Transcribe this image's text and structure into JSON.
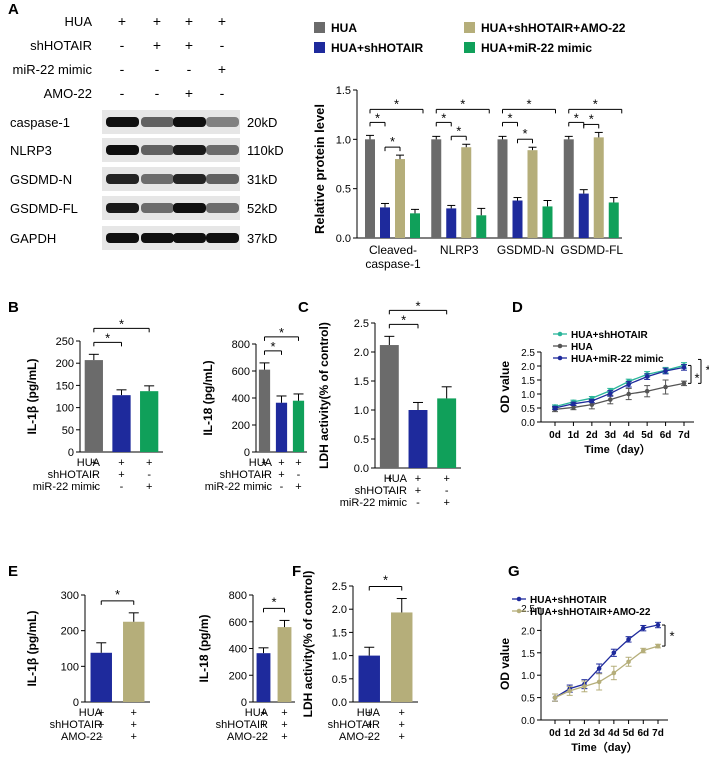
{
  "panel_letters": [
    "A",
    "B",
    "C",
    "D",
    "E",
    "F",
    "G"
  ],
  "colors": {
    "gray": "#6b6b6b",
    "blue": "#1e2a9c",
    "khaki": "#b5ae7a",
    "green": "#10a05a",
    "teal": "#2ab59a",
    "dark": "#555555"
  },
  "blot": {
    "row_labels": [
      "HUA",
      "shHOTAIR",
      "miR-22 mimic",
      "AMO-22"
    ],
    "signs": [
      [
        "+",
        "+",
        "+",
        "+"
      ],
      [
        "-",
        "+",
        "+",
        "-"
      ],
      [
        "-",
        "-",
        "-",
        "+"
      ],
      [
        "-",
        "-",
        "+",
        "-"
      ]
    ],
    "bands": [
      {
        "name": "caspase-1",
        "kd": "20kD",
        "intensity": [
          0.95,
          0.55,
          0.95,
          0.4
        ]
      },
      {
        "name": "NLRP3",
        "kd": "110kD",
        "intensity": [
          0.95,
          0.55,
          0.9,
          0.5
        ]
      },
      {
        "name": "GSDMD-N",
        "kd": "31kD",
        "intensity": [
          0.85,
          0.5,
          0.85,
          0.55
        ]
      },
      {
        "name": "GSDMD-FL",
        "kd": "52kD",
        "intensity": [
          0.9,
          0.5,
          0.95,
          0.5
        ]
      },
      {
        "name": "GAPDH",
        "kd": "37kD",
        "intensity": [
          0.95,
          0.95,
          0.95,
          0.95
        ]
      }
    ]
  },
  "chart_data": [
    {
      "panel": "A",
      "type": "bar",
      "ylabel": "Relative protein level",
      "ylim": [
        0,
        1.5
      ],
      "yticks": [
        "0.0",
        "0.5",
        "1.0",
        "1.5"
      ],
      "categories": [
        "Cleaved-caspase-1",
        "NLRP3",
        "GSDMD-N",
        "GSDMD-FL"
      ],
      "category_lines": [
        [
          "Cleaved-",
          "caspase-1"
        ],
        [
          "NLRP3"
        ],
        [
          "GSDMD-N"
        ],
        [
          "GSDMD-FL"
        ]
      ],
      "legend": [
        "HUA",
        "HUA+shHOTAIR",
        "HUA+shHOTAIR+AMO-22",
        "HUA+miR-22 mimic"
      ],
      "series": [
        {
          "name": "HUA",
          "color": "gray",
          "values": [
            1.0,
            1.0,
            1.0,
            1.0
          ],
          "err": [
            0.04,
            0.03,
            0.03,
            0.03
          ]
        },
        {
          "name": "HUA+shHOTAIR",
          "color": "blue",
          "values": [
            0.31,
            0.3,
            0.38,
            0.45
          ],
          "err": [
            0.04,
            0.03,
            0.03,
            0.04
          ]
        },
        {
          "name": "HUA+shHOTAIR+AMO-22",
          "color": "khaki",
          "values": [
            0.8,
            0.92,
            0.89,
            1.02
          ],
          "err": [
            0.04,
            0.03,
            0.03,
            0.05
          ]
        },
        {
          "name": "HUA+miR-22 mimic",
          "color": "green",
          "values": [
            0.25,
            0.23,
            0.32,
            0.36
          ],
          "err": [
            0.04,
            0.07,
            0.06,
            0.05
          ]
        }
      ],
      "significance": "*"
    },
    {
      "panel": "B1",
      "type": "bar",
      "ylabel": "IL-1β (pg/mL)",
      "ylim": [
        0,
        250
      ],
      "yticks": [
        "0",
        "50",
        "100",
        "150",
        "200",
        "250"
      ],
      "values": [
        207,
        128,
        137
      ],
      "err": [
        13,
        12,
        12
      ],
      "colors": [
        "gray",
        "blue",
        "green"
      ],
      "conditions": [
        "HUA",
        "shHOTAIR",
        "miR-22 mimic"
      ],
      "signs": [
        [
          "+",
          "+",
          "+"
        ],
        [
          "-",
          "+",
          "-"
        ],
        [
          "-",
          "-",
          "+"
        ]
      ],
      "significance": "*"
    },
    {
      "panel": "B2",
      "type": "bar",
      "ylabel": "IL-18 (pg/mL)",
      "ylim": [
        0,
        800
      ],
      "yticks": [
        "0",
        "200",
        "400",
        "600",
        "800"
      ],
      "values": [
        610,
        365,
        380
      ],
      "err": [
        50,
        50,
        50
      ],
      "colors": [
        "gray",
        "blue",
        "green"
      ],
      "conditions": [
        "HUA",
        "shHOTAIR",
        "miR-22 mimic"
      ],
      "signs": [
        [
          "+",
          "+",
          "+"
        ],
        [
          "-",
          "+",
          "-"
        ],
        [
          "-",
          "-",
          "+"
        ]
      ],
      "significance": "*"
    },
    {
      "panel": "C",
      "type": "bar",
      "ylabel": "LDH activity(% of control)",
      "ylim": [
        0,
        2.5
      ],
      "yticks": [
        "0.0",
        "0.5",
        "1.0",
        "1.5",
        "2.0",
        "2.5"
      ],
      "values": [
        2.12,
        1.0,
        1.2
      ],
      "err": [
        0.15,
        0.13,
        0.2
      ],
      "colors": [
        "gray",
        "blue",
        "green"
      ],
      "conditions": [
        "HUA",
        "shHOTAIR",
        "miR-22 mimic"
      ],
      "signs": [
        [
          "+",
          "+",
          "+"
        ],
        [
          "-",
          "+",
          "-"
        ],
        [
          "-",
          "-",
          "+"
        ]
      ],
      "significance": "*"
    },
    {
      "panel": "D",
      "type": "line",
      "ylabel": "OD value",
      "xlabel": "Time（day）",
      "ylim": [
        0,
        2.5
      ],
      "yticks": [
        "0.0",
        "0.5",
        "1.0",
        "1.5",
        "2.0",
        "2.5"
      ],
      "x": [
        "0d",
        "1d",
        "2d",
        "3d",
        "4d",
        "5d",
        "6d",
        "7d"
      ],
      "series": [
        {
          "name": "HUA+shHOTAIR",
          "color": "teal",
          "values": [
            0.55,
            0.72,
            0.85,
            1.12,
            1.45,
            1.7,
            1.85,
            2.02
          ],
          "err": [
            0.06,
            0.06,
            0.06,
            0.08,
            0.08,
            0.1,
            0.1,
            0.1
          ]
        },
        {
          "name": "HUA",
          "color": "dark",
          "values": [
            0.45,
            0.52,
            0.62,
            0.8,
            1.0,
            1.1,
            1.25,
            1.38
          ],
          "err": [
            0.08,
            0.08,
            0.15,
            0.15,
            0.2,
            0.2,
            0.25,
            0.08
          ]
        },
        {
          "name": "HUA+miR-22 mimic",
          "color": "blue",
          "values": [
            0.5,
            0.65,
            0.75,
            1.02,
            1.35,
            1.62,
            1.82,
            1.95
          ],
          "err": [
            0.06,
            0.06,
            0.06,
            0.1,
            0.1,
            0.1,
            0.1,
            0.1
          ]
        }
      ],
      "significance": "*"
    },
    {
      "panel": "E1",
      "type": "bar",
      "ylabel": "IL-1β (pg/mL)",
      "ylim": [
        0,
        300
      ],
      "yticks": [
        "0",
        "100",
        "200",
        "300"
      ],
      "values": [
        138,
        225
      ],
      "err": [
        28,
        25
      ],
      "colors": [
        "blue",
        "khaki"
      ],
      "conditions": [
        "HUA",
        "shHOTAIR",
        "AMO-22"
      ],
      "signs": [
        [
          "+",
          "+"
        ],
        [
          "+",
          "+"
        ],
        [
          "-",
          "+"
        ]
      ],
      "significance": "*"
    },
    {
      "panel": "E2",
      "type": "bar",
      "ylabel": "IL-18 (pg/m)",
      "ylim": [
        0,
        800
      ],
      "yticks": [
        "0",
        "200",
        "400",
        "600",
        "800"
      ],
      "values": [
        365,
        560
      ],
      "err": [
        40,
        50
      ],
      "colors": [
        "blue",
        "khaki"
      ],
      "conditions": [
        "HUA",
        "shHOTAIR",
        "AMO-22"
      ],
      "signs": [
        [
          "+",
          "+"
        ],
        [
          "+",
          "+"
        ],
        [
          "-",
          "+"
        ]
      ],
      "significance": "*"
    },
    {
      "panel": "F",
      "type": "bar",
      "ylabel": "LDH activity(% of control)",
      "ylim": [
        0,
        2.5
      ],
      "yticks": [
        "0.0",
        "0.5",
        "1.0",
        "1.5",
        "2.0",
        "2.5"
      ],
      "values": [
        1.0,
        1.93
      ],
      "err": [
        0.18,
        0.3
      ],
      "colors": [
        "blue",
        "khaki"
      ],
      "conditions": [
        "HUA",
        "shHOTAIR",
        "AMO-22"
      ],
      "signs": [
        [
          "+",
          "+"
        ],
        [
          "+",
          "+"
        ],
        [
          "-",
          "+"
        ]
      ],
      "significance": "*"
    },
    {
      "panel": "G",
      "type": "line",
      "ylabel": "OD value",
      "xlabel": "Time（day）",
      "ylim": [
        0,
        2.5
      ],
      "yticks": [
        "0.0",
        "0.5",
        "1.0",
        "1.5",
        "2.0",
        "2.5"
      ],
      "x": [
        "0d",
        "1d",
        "2d",
        "3d",
        "4d",
        "5d",
        "6d",
        "7d"
      ],
      "series": [
        {
          "name": "HUA+shHOTAIR",
          "color": "blue",
          "values": [
            0.5,
            0.7,
            0.8,
            1.15,
            1.5,
            1.8,
            2.05,
            2.12
          ],
          "err": [
            0.08,
            0.08,
            0.1,
            0.1,
            0.08,
            0.06,
            0.06,
            0.06
          ]
        },
        {
          "name": "HUA+shHOTAIR+AMO-22",
          "color": "khaki",
          "values": [
            0.5,
            0.65,
            0.75,
            0.85,
            1.05,
            1.3,
            1.55,
            1.65
          ],
          "err": [
            0.08,
            0.1,
            0.12,
            0.18,
            0.15,
            0.1,
            0.05,
            0.04
          ]
        }
      ],
      "significance": "*"
    }
  ]
}
